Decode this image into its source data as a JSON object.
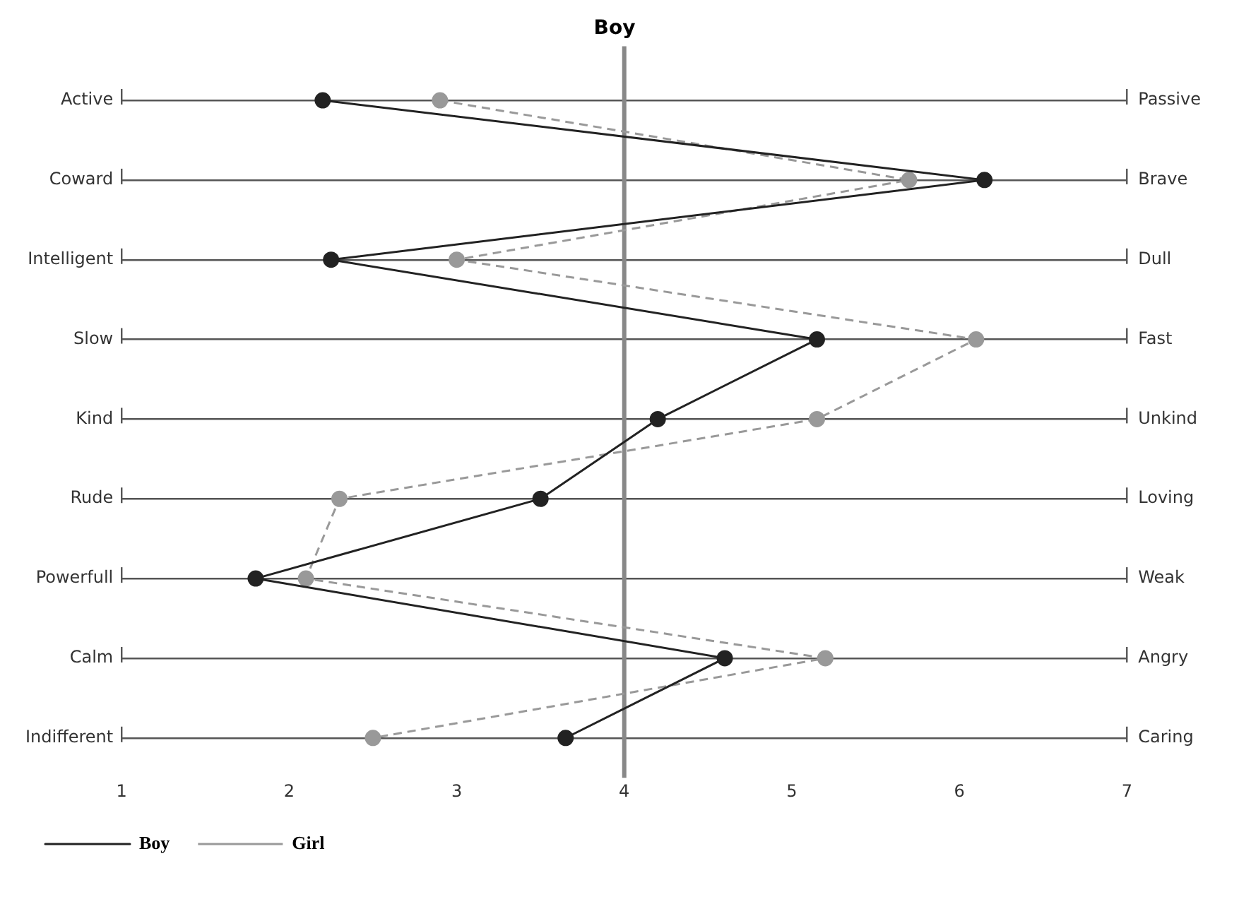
{
  "chart_data": {
    "type": "line",
    "title": "Boy",
    "orientation": "horizontal",
    "categories": [
      "Active",
      "Coward",
      "Intelligent",
      "Slow",
      "Kind",
      "Rude",
      "Powerfull",
      "Calm",
      "Indifferent"
    ],
    "y2_categories": [
      "Passive",
      "Brave",
      "Dull",
      "Fast",
      "Unkind",
      "Loving",
      "Weak",
      "Angry",
      "Caring"
    ],
    "series": [
      {
        "name": "Boy",
        "color": "#222222",
        "line_style": "solid",
        "values": [
          2.2,
          6.15,
          2.25,
          5.15,
          4.2,
          3.5,
          1.8,
          4.6,
          3.65
        ]
      },
      {
        "name": "Girl",
        "color": "#999999",
        "line_style": "dashed",
        "values": [
          2.9,
          5.7,
          3.0,
          6.1,
          5.15,
          2.3,
          2.1,
          5.2,
          2.5
        ]
      }
    ],
    "xlim": [
      1,
      7
    ],
    "xticks": [
      1,
      2,
      3,
      4,
      5,
      6,
      7
    ],
    "ref_lines": [
      {
        "axis": "x",
        "value": 4,
        "color": "#888888"
      }
    ],
    "grid": "y",
    "marker": "circle",
    "legend": "bottom left"
  }
}
